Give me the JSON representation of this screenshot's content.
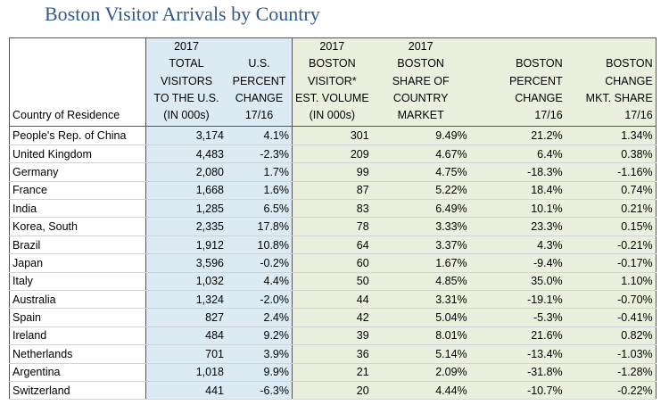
{
  "title": "Boston Visitor Arrivals by Country",
  "header": {
    "country": "Country of Residence",
    "c1": [
      "2017",
      "TOTAL",
      "VISITORS",
      "TO THE U.S.",
      "(IN 000s)"
    ],
    "c2": [
      "",
      "U.S.",
      "PERCENT",
      "CHANGE",
      "17/16"
    ],
    "c3": [
      "2017",
      "BOSTON",
      "VISITOR*",
      "EST. VOLUME",
      "(IN 000s)"
    ],
    "c4": [
      "2017",
      "BOSTON",
      "SHARE OF",
      "COUNTRY",
      "MARKET"
    ],
    "c5": [
      "",
      "BOSTON",
      "PERCENT",
      "CHANGE",
      "17/16"
    ],
    "c6": [
      "",
      "BOSTON",
      "CHANGE",
      "MKT. SHARE",
      "17/16"
    ]
  },
  "rows": [
    {
      "country": "People's Rep. of China",
      "us_visitors": "3,174",
      "us_change": "4.1%",
      "boston_volume": "301",
      "boston_share": "9.49%",
      "boston_change": "21.2%",
      "mkt_share_change": "1.34%"
    },
    {
      "country": "United Kingdom",
      "us_visitors": "4,483",
      "us_change": "-2.3%",
      "boston_volume": "209",
      "boston_share": "4.67%",
      "boston_change": "6.4%",
      "mkt_share_change": "0.38%"
    },
    {
      "country": "Germany",
      "us_visitors": "2,080",
      "us_change": "1.7%",
      "boston_volume": "99",
      "boston_share": "4.75%",
      "boston_change": "-18.3%",
      "mkt_share_change": "-1.16%"
    },
    {
      "country": "France",
      "us_visitors": "1,668",
      "us_change": "1.6%",
      "boston_volume": "87",
      "boston_share": "5.22%",
      "boston_change": "18.4%",
      "mkt_share_change": "0.74%"
    },
    {
      "country": "India",
      "us_visitors": "1,285",
      "us_change": "6.5%",
      "boston_volume": "83",
      "boston_share": "6.49%",
      "boston_change": "10.1%",
      "mkt_share_change": "0.21%"
    },
    {
      "country": "Korea, South",
      "us_visitors": "2,335",
      "us_change": "17.8%",
      "boston_volume": "78",
      "boston_share": "3.33%",
      "boston_change": "23.3%",
      "mkt_share_change": "0.15%"
    },
    {
      "country": "Brazil",
      "us_visitors": "1,912",
      "us_change": "10.8%",
      "boston_volume": "64",
      "boston_share": "3.37%",
      "boston_change": "4.3%",
      "mkt_share_change": "-0.21%"
    },
    {
      "country": "Japan",
      "us_visitors": "3,596",
      "us_change": "-0.2%",
      "boston_volume": "60",
      "boston_share": "1.67%",
      "boston_change": "-9.4%",
      "mkt_share_change": "-0.17%"
    },
    {
      "country": "Italy",
      "us_visitors": "1,032",
      "us_change": "4.4%",
      "boston_volume": "50",
      "boston_share": "4.85%",
      "boston_change": "35.0%",
      "mkt_share_change": "1.10%"
    },
    {
      "country": "Australia",
      "us_visitors": "1,324",
      "us_change": "-2.0%",
      "boston_volume": "44",
      "boston_share": "3.31%",
      "boston_change": "-19.1%",
      "mkt_share_change": "-0.70%"
    },
    {
      "country": "Spain",
      "us_visitors": "827",
      "us_change": "2.4%",
      "boston_volume": "42",
      "boston_share": "5.04%",
      "boston_change": "-5.3%",
      "mkt_share_change": "-0.41%"
    },
    {
      "country": "Ireland",
      "us_visitors": "484",
      "us_change": "9.2%",
      "boston_volume": "39",
      "boston_share": "8.01%",
      "boston_change": "21.6%",
      "mkt_share_change": "0.82%"
    },
    {
      "country": "Netherlands",
      "us_visitors": "701",
      "us_change": "3.9%",
      "boston_volume": "36",
      "boston_share": "5.14%",
      "boston_change": "-13.4%",
      "mkt_share_change": "-1.03%"
    },
    {
      "country": "Argentina",
      "us_visitors": "1,018",
      "us_change": "9.9%",
      "boston_volume": "21",
      "boston_share": "2.09%",
      "boston_change": "-31.8%",
      "mkt_share_change": "-1.28%"
    },
    {
      "country": "Switzerland",
      "us_visitors": "441",
      "us_change": "-6.3%",
      "boston_volume": "20",
      "boston_share": "4.44%",
      "boston_change": "-10.7%",
      "mkt_share_change": "-0.22%"
    }
  ]
}
